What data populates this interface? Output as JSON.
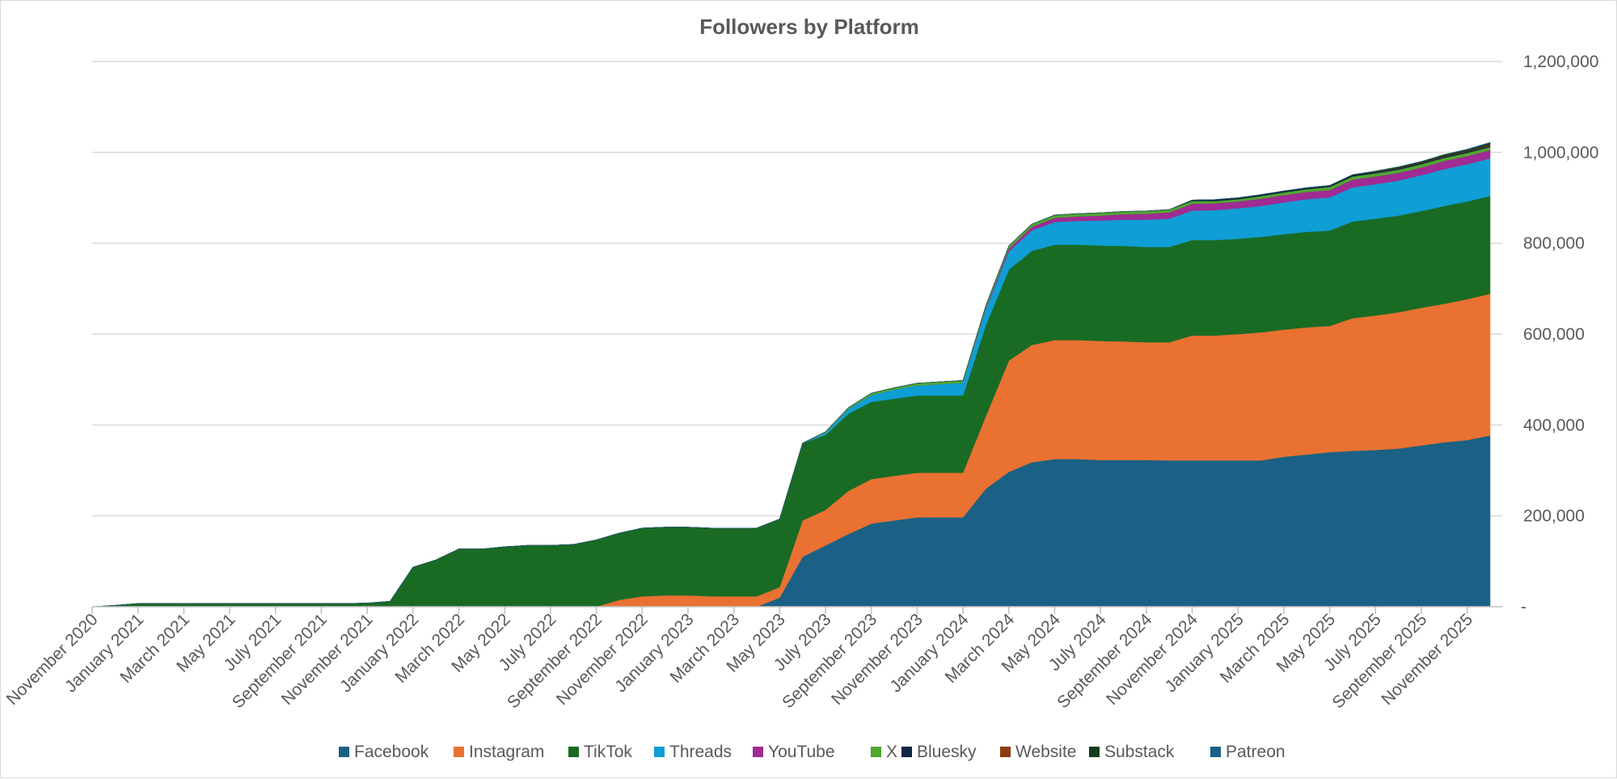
{
  "chart_data": {
    "type": "area",
    "stacked": true,
    "title": "Followers by Platform",
    "xlabel": "",
    "ylabel": "",
    "ylim": [
      0,
      1200000
    ],
    "yticks": [
      0,
      200000,
      400000,
      600000,
      800000,
      1000000,
      1200000
    ],
    "ytick_labels": [
      "-",
      "200,000",
      "400,000",
      "600,000",
      "800,000",
      "1,000,000",
      "1,200,000"
    ],
    "y_axis_side": "right",
    "grid": true,
    "legend_position": "bottom",
    "x_tick_labels": [
      "November 2020",
      "January 2021",
      "March 2021",
      "May 2021",
      "July 2021",
      "September 2021",
      "November 2021",
      "January 2022",
      "March 2022",
      "May 2022",
      "July 2022",
      "September 2022",
      "November 2022",
      "January 2023",
      "March 2023",
      "May 2023",
      "July 2023",
      "September 2023",
      "November 2023",
      "January 2024",
      "March 2024",
      "May 2024",
      "July 2024",
      "September 2024",
      "November 2024",
      "January 2025",
      "March 2025",
      "May 2025",
      "July 2025",
      "September 2025",
      "November 2025"
    ],
    "x": [
      "2020-11",
      "2020-12",
      "2021-01",
      "2021-02",
      "2021-03",
      "2021-04",
      "2021-05",
      "2021-06",
      "2021-07",
      "2021-08",
      "2021-09",
      "2021-10",
      "2021-11",
      "2021-12",
      "2022-01",
      "2022-02",
      "2022-03",
      "2022-04",
      "2022-05",
      "2022-06",
      "2022-07",
      "2022-08",
      "2022-09",
      "2022-10",
      "2022-11",
      "2022-12",
      "2023-01",
      "2023-02",
      "2023-03",
      "2023-04",
      "2023-05",
      "2023-06",
      "2023-07",
      "2023-08",
      "2023-09",
      "2023-10",
      "2023-11",
      "2023-12",
      "2024-01",
      "2024-02",
      "2024-03",
      "2024-04",
      "2024-05",
      "2024-06",
      "2024-07",
      "2024-08",
      "2024-09",
      "2024-10",
      "2024-11",
      "2024-12",
      "2025-01",
      "2025-02",
      "2025-03",
      "2025-04",
      "2025-05",
      "2025-06",
      "2025-07",
      "2025-08",
      "2025-09",
      "2025-10",
      "2025-11",
      "2025-12"
    ],
    "series": [
      {
        "name": "Facebook",
        "color": "#1a6185",
        "values": [
          0,
          0,
          0,
          0,
          0,
          0,
          0,
          0,
          0,
          0,
          0,
          0,
          0,
          0,
          0,
          0,
          0,
          0,
          0,
          0,
          0,
          0,
          0,
          0,
          0,
          0,
          0,
          0,
          0,
          0,
          20000,
          110000,
          135000,
          160000,
          183000,
          190000,
          197000,
          197000,
          197000,
          260000,
          297000,
          318000,
          325000,
          325000,
          323000,
          323000,
          323000,
          322000,
          322000,
          322000,
          322000,
          322000,
          330000,
          335000,
          340000,
          343000,
          345000,
          348000,
          355000,
          362000,
          367000,
          377000
        ]
      },
      {
        "name": "Instagram",
        "color": "#e97132",
        "values": [
          0,
          0,
          0,
          0,
          0,
          0,
          0,
          0,
          0,
          0,
          0,
          0,
          0,
          0,
          0,
          0,
          0,
          0,
          0,
          0,
          0,
          0,
          0,
          15000,
          23000,
          25000,
          25000,
          23000,
          23000,
          23000,
          23000,
          80000,
          78000,
          95000,
          98000,
          98000,
          98000,
          98000,
          98000,
          160000,
          245000,
          258000,
          262000,
          262000,
          262000,
          261000,
          259000,
          260000,
          275000,
          275000,
          278000,
          282000,
          280000,
          280000,
          278000,
          292000,
          296000,
          300000,
          303000,
          305000,
          310000,
          312000
        ]
      },
      {
        "name": "TikTok",
        "color": "#196b24",
        "values": [
          0,
          3000,
          7000,
          7000,
          7000,
          7000,
          7000,
          7000,
          7000,
          7000,
          7000,
          7000,
          8000,
          12000,
          87000,
          103000,
          127000,
          127000,
          132000,
          135000,
          135000,
          137000,
          147000,
          147000,
          150000,
          150000,
          150000,
          150000,
          150000,
          150000,
          150000,
          170000,
          165000,
          170000,
          170000,
          170000,
          170000,
          170000,
          170000,
          200000,
          200000,
          207000,
          210000,
          210000,
          210000,
          210000,
          210000,
          210000,
          210000,
          210000,
          210000,
          210000,
          210000,
          210000,
          210000,
          213000,
          213000,
          213000,
          213000,
          215000,
          215000,
          215000
        ]
      },
      {
        "name": "Threads",
        "color": "#0f9ed5",
        "values": [
          0,
          0,
          0,
          0,
          0,
          0,
          0,
          0,
          0,
          0,
          0,
          0,
          0,
          0,
          0,
          0,
          0,
          0,
          0,
          0,
          0,
          0,
          0,
          0,
          0,
          0,
          0,
          0,
          0,
          0,
          0,
          0,
          5000,
          10000,
          15000,
          20000,
          22000,
          25000,
          28000,
          35000,
          40000,
          45000,
          50000,
          52000,
          55000,
          58000,
          60000,
          62000,
          65000,
          66000,
          67000,
          68000,
          70000,
          72000,
          73000,
          75000,
          76000,
          77000,
          79000,
          81000,
          82000,
          83000
        ]
      },
      {
        "name": "YouTube",
        "color": "#a02b93",
        "values": [
          0,
          0,
          0,
          0,
          0,
          0,
          0,
          0,
          0,
          0,
          0,
          0,
          0,
          0,
          0,
          0,
          0,
          0,
          0,
          0,
          0,
          0,
          0,
          0,
          0,
          0,
          0,
          0,
          0,
          0,
          0,
          0,
          0,
          0,
          0,
          0,
          0,
          0,
          0,
          3000,
          6000,
          8000,
          9000,
          10000,
          11000,
          12000,
          13000,
          14000,
          15000,
          15000,
          15000,
          16000,
          16000,
          16000,
          16000,
          17000,
          17000,
          17000,
          17000,
          18000,
          18000,
          18000
        ]
      },
      {
        "name": "X",
        "color": "#4ea72e",
        "values": [
          0,
          0,
          0,
          0,
          0,
          0,
          0,
          0,
          0,
          0,
          0,
          0,
          0,
          0,
          0,
          0,
          0,
          0,
          0,
          0,
          0,
          0,
          0,
          0,
          0,
          0,
          0,
          0,
          0,
          0,
          0,
          0,
          2000,
          3000,
          4000,
          4000,
          5000,
          5000,
          5000,
          5000,
          6000,
          6000,
          6000,
          6000,
          6000,
          6000,
          6000,
          6000,
          6000,
          5000,
          5000,
          6000,
          6000,
          6000,
          7000,
          7000,
          7000,
          7000,
          7000,
          7000,
          7000,
          7000
        ]
      },
      {
        "name": "Bluesky",
        "color": "#0e2841",
        "values": [
          0,
          0,
          0,
          0,
          0,
          0,
          0,
          0,
          0,
          0,
          0,
          0,
          0,
          0,
          0,
          0,
          0,
          0,
          0,
          0,
          0,
          0,
          0,
          0,
          0,
          0,
          0,
          0,
          0,
          0,
          0,
          0,
          0,
          0,
          0,
          0,
          0,
          0,
          0,
          0,
          0,
          0,
          0,
          0,
          0,
          0,
          0,
          0,
          2000,
          3000,
          3000,
          3000,
          3000,
          3000,
          3000,
          3000,
          3000,
          3000,
          3000,
          3000,
          3000,
          3000
        ]
      },
      {
        "name": "Website",
        "color": "#8e3c10",
        "values": [
          0,
          0,
          0,
          0,
          0,
          0,
          0,
          0,
          0,
          0,
          0,
          0,
          0,
          0,
          0,
          0,
          0,
          0,
          0,
          0,
          0,
          0,
          0,
          0,
          0,
          0,
          0,
          0,
          0,
          0,
          0,
          0,
          0,
          0,
          0,
          0,
          0,
          0,
          0,
          0,
          0,
          0,
          0,
          0,
          0,
          0,
          0,
          0,
          0,
          0,
          0,
          0,
          0,
          0,
          0,
          0,
          1000,
          1000,
          1000,
          1000,
          1000,
          2000
        ]
      },
      {
        "name": "Substack",
        "color": "#133e1a",
        "values": [
          0,
          0,
          0,
          0,
          0,
          0,
          0,
          0,
          0,
          0,
          0,
          0,
          0,
          0,
          0,
          0,
          0,
          0,
          0,
          0,
          0,
          0,
          0,
          0,
          0,
          0,
          0,
          0,
          0,
          0,
          0,
          0,
          0,
          0,
          0,
          0,
          0,
          0,
          0,
          0,
          0,
          0,
          0,
          0,
          0,
          0,
          0,
          0,
          0,
          0,
          0,
          0,
          0,
          0,
          0,
          1000,
          1000,
          2000,
          2000,
          3000,
          3000,
          4000
        ]
      },
      {
        "name": "Patreon",
        "color": "#1a6185",
        "values": [
          0,
          0,
          0,
          0,
          0,
          0,
          0,
          0,
          0,
          0,
          0,
          0,
          0,
          0,
          0,
          0,
          0,
          0,
          0,
          0,
          0,
          0,
          0,
          0,
          0,
          0,
          0,
          0,
          0,
          0,
          0,
          0,
          0,
          0,
          0,
          0,
          0,
          0,
          0,
          0,
          0,
          0,
          0,
          0,
          0,
          0,
          0,
          0,
          0,
          0,
          0,
          0,
          0,
          0,
          0,
          0,
          0,
          0,
          0,
          0,
          1000,
          1000
        ]
      }
    ]
  }
}
